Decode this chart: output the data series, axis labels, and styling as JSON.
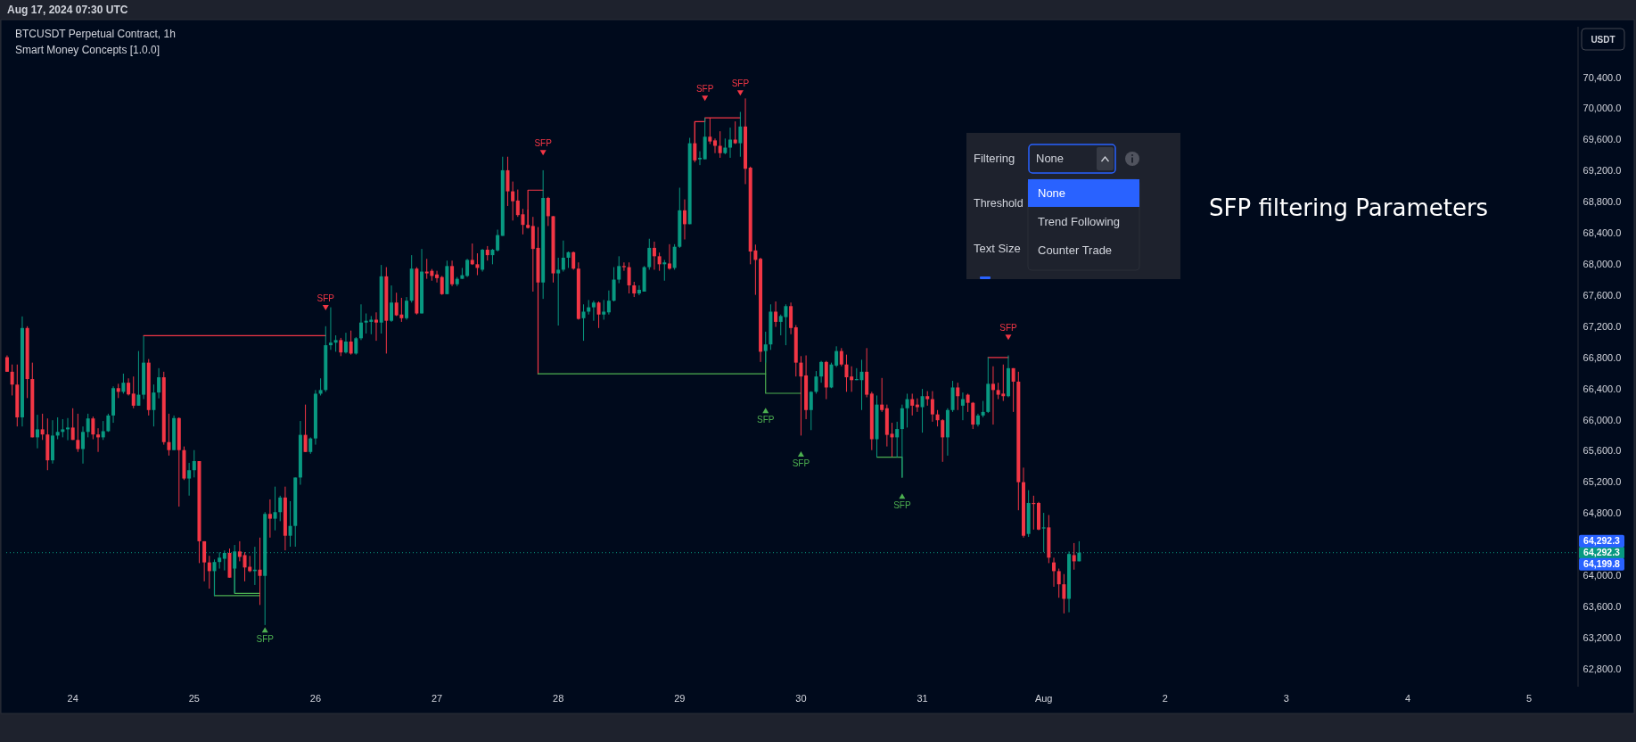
{
  "chart_data": {
    "type": "candlestick",
    "title": "BTCUSDT Perpetual Contract, 1h",
    "subtitle": "Smart Money Concepts [1.0.0]",
    "ylabel": "USDT",
    "colors": [
      "#f23645",
      "#f23645",
      "#f23645",
      "#089981",
      "#f23645",
      "#f23645",
      "#089981",
      "#f23645",
      "#f23645",
      "#089981",
      "#089981",
      "#089981",
      "#089981",
      "#f23645",
      "#f23645",
      "#089981",
      "#089981",
      "#f23645",
      "#f23645",
      "#089981",
      "#089981",
      "#089981",
      "#f23645",
      "#089981",
      "#f23645",
      "#f23645",
      "#089981",
      "#089981",
      "#f23645",
      "#089981",
      "#089981",
      "#f23645",
      "#f23645",
      "#089981",
      "#f23645",
      "#f23645",
      "#089981",
      "#089981",
      "#f23645",
      "#f23645",
      "#f23645",
      "#089981",
      "#089981",
      "#089981",
      "#f23645",
      "#089981",
      "#f23645",
      "#f23645",
      "#f23645",
      "#089981",
      "#f23645",
      "#089981",
      "#f23645",
      "#089981",
      "#089981",
      "#f23645",
      "#089981",
      "#089981",
      "#089981",
      "#f23645",
      "#089981",
      "#089981",
      "#089981",
      "#089981",
      "#089981",
      "#089981",
      "#f23645",
      "#089981",
      "#f23645",
      "#089981",
      "#089981",
      "#089981",
      "#089981",
      "#f23645",
      "#089981",
      "#f23645",
      "#089981",
      "#f23645",
      "#f23645",
      "#089981",
      "#089981",
      "#f23645",
      "#089981",
      "#f23645",
      "#f23645",
      "#f23645",
      "#f23645",
      "#089981",
      "#f23645",
      "#089981",
      "#089981",
      "#089981",
      "#f23645",
      "#f23645",
      "#089981",
      "#f23645",
      "#089981",
      "#089981",
      "#089981",
      "#f23645",
      "#f23645",
      "#f23645",
      "#f23645",
      "#f23645",
      "#f23645",
      "#f23645",
      "#089981",
      "#f23645",
      "#f23645",
      "#089981",
      "#089981",
      "#089981",
      "#f23645",
      "#f23645",
      "#089981",
      "#089981",
      "#089981",
      "#f23645",
      "#089981",
      "#089981",
      "#089981",
      "#089981",
      "#f23645",
      "#f23645",
      "#f23645",
      "#089981",
      "#089981",
      "#089981",
      "#f23645",
      "#f23645",
      "#089981",
      "#f23645",
      "#089981",
      "#089981",
      "#f23645",
      "#089981",
      "#f23645",
      "#089981",
      "#089981",
      "#f23645",
      "#f23645",
      "#f23645",
      "#089981",
      "#089981",
      "#f23645",
      "#089981",
      "#f23645",
      "#f23645",
      "#f23645",
      "#f23645",
      "#089981",
      "#089981",
      "#f23645",
      "#089981",
      "#089981",
      "#f23645",
      "#f23645",
      "#f23645",
      "#f23645",
      "#089981",
      "#089981",
      "#089981",
      "#f23645",
      "#089981",
      "#089981",
      "#f23645",
      "#f23645",
      "#f23645",
      "#089981",
      "#089981",
      "#f23645",
      "#f23645",
      "#089981",
      "#f23645",
      "#f23645",
      "#f23645",
      "#089981",
      "#089981",
      "#089981",
      "#f23645",
      "#f23645",
      "#089981",
      "#f23645",
      "#f23645",
      "#f23645",
      "#f23645",
      "#089981",
      "#089981",
      "#f23645",
      "#089981",
      "#f23645",
      "#f23645",
      "#089981",
      "#089981",
      "#089981",
      "#f23645",
      "#f23645",
      "#f23645",
      "#089981",
      "#f23645",
      "#f23645",
      "#f23645",
      "#089981",
      "#f23645",
      "#f23645",
      "#089981",
      "#f23645",
      "#f23645",
      "#f23645",
      "#f23645",
      "#089981",
      "#f23645",
      "#089981"
    ],
    "x": [
      "2024-07-23T11:00",
      "2024-07-23T12:00",
      "2024-07-23T13:00",
      "2024-07-23T14:00",
      "2024-07-23T15:00",
      "2024-07-23T16:00",
      "2024-07-23T17:00",
      "2024-07-23T18:00",
      "2024-07-23T19:00",
      "2024-07-23T20:00",
      "2024-07-23T21:00",
      "2024-07-23T22:00",
      "2024-07-23T23:00",
      "2024-07-24T00:00",
      "2024-07-24T01:00",
      "2024-07-24T02:00",
      "2024-07-24T03:00",
      "2024-07-24T04:00",
      "2024-07-24T05:00",
      "2024-07-24T06:00",
      "2024-07-24T07:00",
      "2024-07-24T08:00",
      "2024-07-24T09:00",
      "2024-07-24T10:00",
      "2024-07-24T11:00",
      "2024-07-24T12:00",
      "2024-07-24T13:00",
      "2024-07-24T14:00",
      "2024-07-24T15:00",
      "2024-07-24T16:00",
      "2024-07-24T17:00",
      "2024-07-24T18:00",
      "2024-07-24T19:00",
      "2024-07-24T20:00",
      "2024-07-24T21:00",
      "2024-07-24T22:00",
      "2024-07-24T23:00",
      "2024-07-25T00:00",
      "2024-07-25T01:00",
      "2024-07-25T02:00",
      "2024-07-25T03:00",
      "2024-07-25T04:00",
      "2024-07-25T05:00",
      "2024-07-25T06:00",
      "2024-07-25T07:00",
      "2024-07-25T08:00",
      "2024-07-25T09:00",
      "2024-07-25T10:00",
      "2024-07-25T11:00",
      "2024-07-25T12:00",
      "2024-07-25T13:00",
      "2024-07-25T14:00",
      "2024-07-25T15:00",
      "2024-07-25T16:00",
      "2024-07-25T17:00",
      "2024-07-25T18:00",
      "2024-07-25T19:00",
      "2024-07-25T20:00",
      "2024-07-25T21:00",
      "2024-07-25T22:00",
      "2024-07-25T23:00",
      "2024-07-26T00:00",
      "2024-07-26T01:00",
      "2024-07-26T02:00",
      "2024-07-26T03:00",
      "2024-07-26T04:00",
      "2024-07-26T05:00",
      "2024-07-26T06:00",
      "2024-07-26T07:00",
      "2024-07-26T08:00",
      "2024-07-26T09:00",
      "2024-07-26T10:00",
      "2024-07-26T11:00",
      "2024-07-26T12:00",
      "2024-07-26T13:00",
      "2024-07-26T14:00",
      "2024-07-26T15:00",
      "2024-07-26T16:00",
      "2024-07-26T17:00",
      "2024-07-26T18:00",
      "2024-07-26T19:00",
      "2024-07-26T20:00",
      "2024-07-26T21:00",
      "2024-07-26T22:00",
      "2024-07-26T23:00",
      "2024-07-27T00:00",
      "2024-07-27T01:00",
      "2024-07-27T02:00",
      "2024-07-27T03:00",
      "2024-07-27T04:00",
      "2024-07-27T05:00",
      "2024-07-27T06:00",
      "2024-07-27T07:00",
      "2024-07-27T08:00",
      "2024-07-27T09:00",
      "2024-07-27T10:00",
      "2024-07-27T11:00",
      "2024-07-27T12:00",
      "2024-07-27T13:00",
      "2024-07-27T14:00",
      "2024-07-27T15:00",
      "2024-07-27T16:00",
      "2024-07-27T17:00",
      "2024-07-27T18:00",
      "2024-07-27T19:00",
      "2024-07-27T20:00",
      "2024-07-27T21:00",
      "2024-07-27T22:00",
      "2024-07-27T23:00",
      "2024-07-28T00:00",
      "2024-07-28T01:00",
      "2024-07-28T02:00",
      "2024-07-28T03:00",
      "2024-07-28T04:00",
      "2024-07-28T05:00",
      "2024-07-28T06:00",
      "2024-07-28T07:00",
      "2024-07-28T08:00",
      "2024-07-28T09:00",
      "2024-07-28T10:00",
      "2024-07-28T11:00",
      "2024-07-28T12:00",
      "2024-07-28T13:00",
      "2024-07-28T14:00",
      "2024-07-28T15:00",
      "2024-07-28T16:00",
      "2024-07-28T17:00",
      "2024-07-28T18:00",
      "2024-07-28T19:00",
      "2024-07-28T20:00",
      "2024-07-28T21:00",
      "2024-07-28T22:00",
      "2024-07-28T23:00",
      "2024-07-29T00:00",
      "2024-07-29T01:00",
      "2024-07-29T02:00",
      "2024-07-29T03:00",
      "2024-07-29T04:00",
      "2024-07-29T05:00",
      "2024-07-29T06:00",
      "2024-07-29T07:00",
      "2024-07-29T08:00",
      "2024-07-29T09:00",
      "2024-07-29T10:00",
      "2024-07-29T11:00",
      "2024-07-29T12:00",
      "2024-07-29T13:00",
      "2024-07-29T14:00",
      "2024-07-29T15:00",
      "2024-07-29T16:00",
      "2024-07-29T17:00",
      "2024-07-29T18:00",
      "2024-07-29T19:00",
      "2024-07-29T20:00",
      "2024-07-29T21:00",
      "2024-07-29T22:00",
      "2024-07-29T23:00",
      "2024-07-30T00:00",
      "2024-07-30T01:00",
      "2024-07-30T02:00",
      "2024-07-30T03:00",
      "2024-07-30T04:00",
      "2024-07-30T05:00",
      "2024-07-30T06:00",
      "2024-07-30T07:00",
      "2024-07-30T08:00",
      "2024-07-30T09:00",
      "2024-07-30T10:00",
      "2024-07-30T11:00",
      "2024-07-30T12:00",
      "2024-07-30T13:00",
      "2024-07-30T14:00",
      "2024-07-30T15:00",
      "2024-07-30T16:00",
      "2024-07-30T17:00",
      "2024-07-30T18:00",
      "2024-07-30T19:00",
      "2024-07-30T20:00",
      "2024-07-30T21:00",
      "2024-07-30T22:00",
      "2024-07-30T23:00",
      "2024-07-31T00:00",
      "2024-07-31T01:00",
      "2024-07-31T02:00",
      "2024-07-31T03:00",
      "2024-07-31T04:00",
      "2024-07-31T05:00",
      "2024-07-31T06:00",
      "2024-07-31T07:00",
      "2024-07-31T08:00",
      "2024-07-31T09:00",
      "2024-07-31T10:00",
      "2024-07-31T11:00",
      "2024-07-31T12:00",
      "2024-07-31T13:00",
      "2024-07-31T14:00",
      "2024-07-31T15:00",
      "2024-07-31T16:00",
      "2024-07-31T17:00",
      "2024-07-31T18:00",
      "2024-07-31T19:00",
      "2024-07-31T20:00",
      "2024-07-31T21:00",
      "2024-07-31T22:00",
      "2024-07-31T23:00",
      "2024-08-01T00:00",
      "2024-08-01T01:00",
      "2024-08-01T02:00",
      "2024-08-01T03:00",
      "2024-08-01T04:00",
      "2024-08-01T05:00",
      "2024-08-01T06:00",
      "2024-08-01T07:00"
    ],
    "ohlc": [
      [
        66804,
        66827,
        66617,
        66617
      ],
      [
        66617,
        66710,
        66312,
        66452
      ],
      [
        66452,
        66710,
        65914,
        66031
      ],
      [
        66031,
        67328,
        65914,
        67179
      ],
      [
        67179,
        67202,
        66279,
        66523
      ],
      [
        66523,
        66734,
        65774,
        65774
      ],
      [
        65774,
        66064,
        65633,
        65877
      ],
      [
        65877,
        66078,
        65741,
        65811
      ],
      [
        65811,
        66017,
        65352,
        65479
      ],
      [
        65479,
        65994,
        65437,
        65797
      ],
      [
        65797,
        66031,
        65750,
        65844
      ],
      [
        65844,
        66008,
        65774,
        65877
      ],
      [
        65877,
        66022,
        65737,
        65900
      ],
      [
        65900,
        66148,
        65741,
        65741
      ],
      [
        65741,
        66078,
        65587,
        65624
      ],
      [
        65624,
        65914,
        65437,
        65844
      ],
      [
        65844,
        66078,
        65774,
        66017
      ],
      [
        66017,
        66041,
        65750,
        65811
      ],
      [
        65811,
        65891,
        65587,
        65774
      ],
      [
        65774,
        65984,
        65741,
        65853
      ],
      [
        65853,
        66078,
        65844,
        66055
      ],
      [
        66055,
        66429,
        65961,
        66406
      ],
      [
        66406,
        66462,
        66279,
        66359
      ],
      [
        66359,
        66593,
        66336,
        66476
      ],
      [
        66476,
        66532,
        66312,
        66326
      ],
      [
        66336,
        66556,
        66148,
        66181
      ],
      [
        66181,
        66883,
        66181,
        66322
      ],
      [
        66322,
        67075,
        66265,
        66734
      ],
      [
        66734,
        66780,
        66055,
        66125
      ],
      [
        66125,
        66453,
        65914,
        66350
      ],
      [
        66350,
        66663,
        66275,
        66546
      ],
      [
        66546,
        66617,
        65680,
        65713
      ],
      [
        65713,
        66078,
        65540,
        65610
      ],
      [
        65610,
        66055,
        65610,
        66022
      ],
      [
        66022,
        66031,
        64884,
        65610
      ],
      [
        65610,
        65657,
        65226,
        65245
      ],
      [
        65245,
        65446,
        65025,
        65352
      ],
      [
        65352,
        65610,
        65259,
        65469
      ],
      [
        65469,
        65469,
        64158,
        64439
      ],
      [
        64439,
        64439,
        63924,
        64167
      ],
      [
        64167,
        64251,
        63830,
        64055
      ],
      [
        64055,
        64205,
        63737,
        64172
      ],
      [
        64172,
        64298,
        64088,
        64228
      ],
      [
        64214,
        64321,
        64064,
        64289
      ],
      [
        64289,
        64345,
        63971,
        63971
      ],
      [
        64088,
        64391,
        63774,
        64308
      ],
      [
        64308,
        64439,
        64181,
        64238
      ],
      [
        64261,
        64298,
        63924,
        64102
      ],
      [
        64111,
        64251,
        64041,
        64055
      ],
      [
        64055,
        64368,
        63877,
        64074
      ],
      [
        64074,
        64486,
        63620,
        63994
      ],
      [
        63994,
        64813,
        63362,
        64790
      ],
      [
        64790,
        64977,
        64486,
        64729
      ],
      [
        64729,
        65141,
        64579,
        64813
      ],
      [
        64813,
        65024,
        64697,
        65001
      ],
      [
        65001,
        65141,
        64322,
        64510
      ],
      [
        64510,
        64954,
        64369,
        64636
      ],
      [
        64636,
        65258,
        64369,
        65258
      ],
      [
        65258,
        65984,
        65165,
        65806
      ],
      [
        65806,
        66195,
        65586,
        65586
      ],
      [
        65586,
        65773,
        65563,
        65760
      ],
      [
        65760,
        66382,
        65680,
        66335
      ],
      [
        66335,
        66532,
        66312,
        66382
      ],
      [
        66382,
        67202,
        66359,
        66958
      ],
      [
        66958,
        67445,
        66898,
        66991
      ],
      [
        66991,
        67085,
        66874,
        67024
      ],
      [
        67024,
        67052,
        66818,
        66865
      ],
      [
        66865,
        67118,
        66851,
        67005
      ],
      [
        67005,
        67146,
        66837,
        66851
      ],
      [
        66851,
        67062,
        66837,
        67047
      ],
      [
        67047,
        67483,
        67024,
        67249
      ],
      [
        67249,
        67366,
        67108,
        67272
      ],
      [
        67258,
        67333,
        67099,
        67286
      ],
      [
        67286,
        67380,
        67015,
        67249
      ],
      [
        67249,
        67989,
        67108,
        67843
      ],
      [
        67843,
        67961,
        66851,
        67272
      ],
      [
        67272,
        67726,
        67258,
        67506
      ],
      [
        67506,
        67633,
        67333,
        67342
      ],
      [
        67352,
        67567,
        67258,
        67305
      ],
      [
        67305,
        67577,
        67286,
        67530
      ],
      [
        67530,
        68115,
        67506,
        67942
      ],
      [
        67942,
        67961,
        67352,
        67366
      ],
      [
        67366,
        68195,
        67366,
        67904
      ],
      [
        67904,
        68068,
        67811,
        67881
      ],
      [
        67914,
        67937,
        67787,
        67848
      ],
      [
        67867,
        67914,
        67764,
        67820
      ],
      [
        67834,
        67848,
        67605,
        67614
      ],
      [
        67614,
        68045,
        67614,
        67975
      ],
      [
        67975,
        68045,
        67717,
        67741
      ],
      [
        67741,
        67834,
        67717,
        67811
      ],
      [
        67811,
        67951,
        67811,
        67858
      ],
      [
        67848,
        68068,
        67834,
        68054
      ],
      [
        68054,
        68265,
        67989,
        67998
      ],
      [
        67998,
        68139,
        67858,
        67951
      ],
      [
        67928,
        68195,
        67904,
        68185
      ],
      [
        68185,
        68232,
        68045,
        68115
      ],
      [
        68115,
        68195,
        67998,
        68185
      ],
      [
        68176,
        68443,
        68162,
        68373
      ],
      [
        68363,
        69380,
        68363,
        69206
      ],
      [
        69206,
        69380,
        68747,
        68935
      ],
      [
        68935,
        69061,
        68560,
        68808
      ],
      [
        68817,
        68958,
        68607,
        68630
      ],
      [
        68640,
        68710,
        68382,
        68504
      ],
      [
        68504,
        68701,
        68457,
        68466
      ],
      [
        68490,
        68607,
        67647,
        68195
      ],
      [
        68209,
        68476,
        67647,
        67764
      ],
      [
        67764,
        69206,
        67553,
        68850
      ],
      [
        68850,
        68864,
        68490,
        68616
      ],
      [
        68616,
        68616,
        67764,
        67881
      ],
      [
        67881,
        68082,
        67211,
        67928
      ],
      [
        67928,
        68303,
        67904,
        68082
      ],
      [
        68082,
        68162,
        67951,
        68153
      ],
      [
        68153,
        68162,
        67928,
        67942
      ],
      [
        67942,
        68022,
        67286,
        67296
      ],
      [
        67305,
        67483,
        67015,
        67389
      ],
      [
        67389,
        67539,
        67352,
        67445
      ],
      [
        67445,
        67530,
        67272,
        67506
      ],
      [
        67506,
        67520,
        67179,
        67352
      ],
      [
        67352,
        67539,
        67286,
        67389
      ],
      [
        67380,
        67661,
        67352,
        67530
      ],
      [
        67530,
        67961,
        67520,
        67801
      ],
      [
        67801,
        68101,
        67755,
        67975
      ],
      [
        67975,
        68022,
        67914,
        67961
      ],
      [
        67961,
        68022,
        67623,
        67727
      ],
      [
        67727,
        67773,
        67577,
        67623
      ],
      [
        67623,
        67727,
        67600,
        67670
      ],
      [
        67647,
        67975,
        67647,
        67961
      ],
      [
        67961,
        68326,
        67928,
        68209
      ],
      [
        68209,
        68289,
        67928,
        68101
      ],
      [
        68101,
        68148,
        67914,
        67998
      ],
      [
        67998,
        68054,
        67787,
        68022
      ],
      [
        68008,
        68256,
        67928,
        67942
      ],
      [
        67951,
        68256,
        67928,
        68223
      ],
      [
        68223,
        68982,
        68209,
        68691
      ],
      [
        68691,
        68832,
        68317,
        68513
      ],
      [
        68513,
        69623,
        68513,
        69553
      ],
      [
        69553,
        69834,
        69309,
        69333
      ],
      [
        69347,
        69450,
        69272,
        69366
      ],
      [
        69347,
        69881,
        69347,
        69637
      ],
      [
        69637,
        69881,
        69543,
        69576
      ],
      [
        69590,
        69614,
        69426,
        69520
      ],
      [
        69520,
        69707,
        69366,
        69426
      ],
      [
        69426,
        69614,
        69412,
        69497
      ],
      [
        69497,
        69754,
        69366,
        69600
      ],
      [
        69600,
        69834,
        69543,
        69553
      ],
      [
        69553,
        69956,
        69380,
        69768
      ],
      [
        69768,
        70129,
        69028,
        69225
      ],
      [
        69239,
        69253,
        67998,
        68162
      ],
      [
        68176,
        68251,
        67605,
        68054
      ],
      [
        68068,
        68082,
        66743,
        66874
      ],
      [
        66883,
        67132,
        66734,
        66968
      ],
      [
        66968,
        67483,
        66898,
        67389
      ],
      [
        67389,
        67520,
        67193,
        67258
      ],
      [
        67258,
        67352,
        67085,
        67333
      ],
      [
        67319,
        67483,
        66958,
        67460
      ],
      [
        67460,
        67506,
        67099,
        67179
      ],
      [
        67188,
        67216,
        66556,
        66734
      ],
      [
        66734,
        66818,
        65797,
        66556
      ],
      [
        66570,
        66827,
        66008,
        66125
      ],
      [
        66125,
        66368,
        65867,
        66359
      ],
      [
        66359,
        66626,
        66335,
        66556
      ],
      [
        66556,
        66757,
        66476,
        66743
      ],
      [
        66743,
        66757,
        66265,
        66415
      ],
      [
        66415,
        66734,
        66406,
        66710
      ],
      [
        66696,
        66944,
        66677,
        66883
      ],
      [
        66883,
        66921,
        66687,
        66710
      ],
      [
        66710,
        66837,
        66359,
        66546
      ],
      [
        66556,
        66687,
        66359,
        66509
      ],
      [
        66509,
        66663,
        66509,
        66523
      ],
      [
        66509,
        66771,
        66125,
        66617
      ],
      [
        66617,
        66921,
        66289,
        66322
      ],
      [
        66336,
        66359,
        65610,
        65750
      ],
      [
        65750,
        66312,
        65516,
        66195
      ],
      [
        66195,
        66537,
        66101,
        66125
      ],
      [
        66148,
        66195,
        65657,
        65806
      ],
      [
        65820,
        65961,
        65525,
        65774
      ],
      [
        65774,
        65975,
        65516,
        65881
      ],
      [
        65881,
        66195,
        65259,
        66148
      ],
      [
        66148,
        66335,
        65900,
        66265
      ],
      [
        66265,
        66335,
        66055,
        66181
      ],
      [
        66195,
        66275,
        66101,
        66162
      ],
      [
        66162,
        66396,
        65834,
        66303
      ],
      [
        66303,
        66368,
        66181,
        66265
      ],
      [
        66265,
        66368,
        65975,
        66069
      ],
      [
        66069,
        66125,
        65914,
        65994
      ],
      [
        65994,
        66008,
        65460,
        65774
      ],
      [
        65774,
        66148,
        65539,
        66125
      ],
      [
        66125,
        66500,
        66101,
        66415
      ],
      [
        66415,
        66476,
        66125,
        66303
      ],
      [
        66181,
        66350,
        65994,
        66265
      ],
      [
        66322,
        66335,
        66101,
        66218
      ],
      [
        66218,
        66228,
        65881,
        65938
      ],
      [
        65938,
        66078,
        65914,
        66055
      ],
      [
        66055,
        66242,
        66031,
        66101
      ],
      [
        66101,
        66804,
        66087,
        66462
      ],
      [
        66462,
        66687,
        65938,
        66382
      ],
      [
        66382,
        66476,
        66265,
        66322
      ],
      [
        66336,
        66710,
        66242,
        66303
      ],
      [
        66303,
        66827,
        66289,
        66663
      ],
      [
        66663,
        66663,
        66101,
        66490
      ],
      [
        66490,
        66617,
        64837,
        65198
      ],
      [
        65198,
        65385,
        64486,
        64510
      ],
      [
        64533,
        65095,
        64495,
        64931
      ],
      [
        64931,
        65024,
        64589,
        64917
      ],
      [
        64931,
        64945,
        64580,
        64589
      ],
      [
        64603,
        64804,
        64298,
        64617
      ],
      [
        64617,
        64776,
        64158,
        64228
      ],
      [
        64167,
        64228,
        63854,
        64055
      ],
      [
        64055,
        64088,
        63713,
        63886
      ],
      [
        63886,
        64017,
        63512,
        63699
      ],
      [
        63699,
        64308,
        63526,
        64275
      ],
      [
        64261,
        64416,
        64074,
        64181
      ],
      [
        64181,
        64439,
        64181,
        64292.3
      ]
    ],
    "series": [
      {
        "type": "line",
        "color": "#f23645",
        "x": [
          "2024-07-24T14:00",
          "2024-07-26T02:00"
        ],
        "values": [
          67080,
          67080
        ]
      },
      {
        "type": "line",
        "color": "#4caf50",
        "x": [
          "2024-07-25T04:00",
          "2024-07-25T04:00",
          "2024-07-25T13:00"
        ],
        "values": [
          64060,
          63740,
          63740
        ]
      },
      {
        "type": "line",
        "color": "#4caf50",
        "x": [
          "2024-07-25T08:00",
          "2024-07-25T08:00",
          "2024-07-25T13:00"
        ],
        "values": [
          64090,
          63770,
          63770
        ]
      },
      {
        "type": "line",
        "color": "#f23645",
        "x": [
          "2024-07-27T18:00",
          "2024-07-27T18:00",
          "2024-07-27T21:00"
        ],
        "values": [
          68470,
          68950,
          68950
        ]
      },
      {
        "type": "line",
        "color": "#f23645",
        "x": [
          "2024-07-27T20:00",
          "2024-07-27T20:00"
        ],
        "values": [
          67760,
          66590
        ]
      },
      {
        "type": "line",
        "color": "#4caf50",
        "x": [
          "2024-07-27T20:00",
          "2024-07-29T17:00"
        ],
        "values": [
          66590,
          66590
        ]
      },
      {
        "type": "line",
        "color": "#4caf50",
        "x": [
          "2024-07-29T17:00",
          "2024-07-29T17:00",
          "2024-07-30T00:00"
        ],
        "values": [
          66880,
          66340,
          66340
        ]
      },
      {
        "type": "line",
        "color": "#f23645",
        "x": [
          "2024-07-29T03:00",
          "2024-07-29T03:00",
          "2024-07-29T05:00",
          "2024-07-29T05:00",
          "2024-07-29T12:00"
        ],
        "values": [
          69550,
          69830,
          69830,
          69880,
          69880
        ]
      },
      {
        "type": "line",
        "color": "#4caf50",
        "x": [
          "2024-07-30T15:00",
          "2024-07-30T20:00",
          "2024-07-30T20:00"
        ],
        "values": [
          65520,
          65520,
          65260
        ]
      },
      {
        "type": "line",
        "color": "#f23645",
        "x": [
          "2024-07-31T13:00",
          "2024-07-31T17:00"
        ],
        "values": [
          66800,
          66800
        ]
      }
    ],
    "xlim": [
      "2024-07-23T10:50",
      "2024-08-05T09:40"
    ],
    "xticks": [
      {
        "value": "2024-07-24",
        "label": "24"
      },
      {
        "value": "2024-07-25",
        "label": "25"
      },
      {
        "value": "2024-07-26",
        "label": "26"
      },
      {
        "value": "2024-07-27",
        "label": "27"
      },
      {
        "value": "2024-07-28",
        "label": "28"
      },
      {
        "value": "2024-07-29",
        "label": "29"
      },
      {
        "value": "2024-07-30",
        "label": "30"
      },
      {
        "value": "2024-07-31",
        "label": "31"
      },
      {
        "value": "2024-08-01",
        "label": "Aug"
      },
      {
        "value": "2024-08-02",
        "label": "2"
      },
      {
        "value": "2024-08-03",
        "label": "3"
      },
      {
        "value": "2024-08-04",
        "label": "4"
      },
      {
        "value": "2024-08-05",
        "label": "5"
      }
    ],
    "ylim": [
      62570,
      71050
    ],
    "yticks": [
      {
        "value": 62800,
        "label": "62,800.0"
      },
      {
        "value": 63200,
        "label": "63,200.0"
      },
      {
        "value": 63600,
        "label": "63,600.0"
      },
      {
        "value": 64000,
        "label": "64,000.0"
      },
      {
        "value": 64800,
        "label": "64,800.0"
      },
      {
        "value": 65200,
        "label": "65,200.0"
      },
      {
        "value": 65600,
        "label": "65,600.0"
      },
      {
        "value": 66000,
        "label": "66,000.0"
      },
      {
        "value": 66400,
        "label": "66,400.0"
      },
      {
        "value": 66800,
        "label": "66,800.0"
      },
      {
        "value": 67200,
        "label": "67,200.0"
      },
      {
        "value": 67600,
        "label": "67,600.0"
      },
      {
        "value": 68000,
        "label": "68,000.0"
      },
      {
        "value": 68400,
        "label": "68,400.0"
      },
      {
        "value": 68800,
        "label": "68,800.0"
      },
      {
        "value": 69200,
        "label": "69,200.0"
      },
      {
        "value": 69600,
        "label": "69,600.0"
      },
      {
        "value": 70000,
        "label": "70,000.0"
      },
      {
        "value": 70400,
        "label": "70,400.0"
      }
    ],
    "ref_lines": [
      {
        "axis": "y",
        "value": 64292.3,
        "label": "64,292.3",
        "color": "#089981",
        "line_style": "dotted"
      }
    ],
    "annotations": [
      "Aug 17, 2024 07:30 UTC",
      "Filtering",
      "None",
      "Threshold",
      "Text Size",
      "None",
      "Trend Following",
      "Counter Trade",
      "SFP filtering Parameters",
      {
        "text": "SFP",
        "x": "2024-07-25T14:00",
        "y": 63300
      },
      {
        "text": "SFP",
        "x": "2024-07-26T02:00",
        "y": 67440
      },
      {
        "text": "SFP",
        "x": "2024-07-27T21:00",
        "y": 69430
      },
      {
        "text": "SFP",
        "x": "2024-07-29T05:00",
        "y": 70130
      },
      {
        "text": "SFP",
        "x": "2024-07-29T12:00",
        "y": 70200
      },
      {
        "text": "SFP",
        "x": "2024-07-29T17:00",
        "y": 66120
      },
      {
        "text": "SFP",
        "x": "2024-07-30T00:00",
        "y": 65560
      },
      {
        "text": "SFP",
        "x": "2024-07-30T20:00",
        "y": 65020
      },
      {
        "text": "SFP",
        "x": "2024-07-31T17:00",
        "y": 67060
      },
      {
        "text": "64,292.3",
        "x": "2024-08-05T09:40",
        "y": 64292.3
      },
      "64,199.8"
    ]
  }
}
